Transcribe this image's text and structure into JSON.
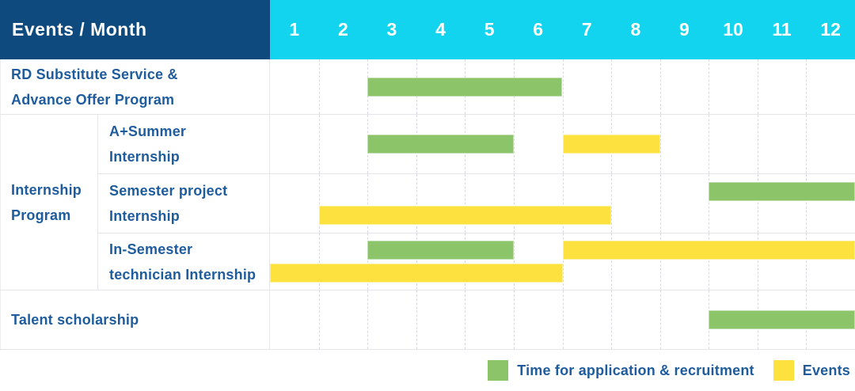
{
  "colors": {
    "header_bg": "#0f4a7e",
    "month_header_bg": "#12d4ee",
    "label_text": "#1e5c9e",
    "grid_line": "#d9d9e0",
    "row_border": "#e4e4e9"
  },
  "header": {
    "corner_label": "Events / Month"
  },
  "chart_data": {
    "type": "gantt",
    "x_axis": {
      "label": "Month",
      "ticks": [
        "1",
        "2",
        "3",
        "4",
        "5",
        "6",
        "7",
        "8",
        "9",
        "10",
        "11",
        "12"
      ],
      "range": [
        1,
        12
      ],
      "grid": "dashed-vertical"
    },
    "legend": [
      {
        "name": "Time for application & recruitment",
        "color": "#8cc46a"
      },
      {
        "name": "Events",
        "color": "#fde23f"
      }
    ],
    "legend_position": "bottom-right",
    "group_label": "Internship Program",
    "group_label_lines": [
      "Internship",
      "Program"
    ],
    "rows": [
      {
        "group": "",
        "label": "RD Substitute Service & Advance Offer Program",
        "label_lines": [
          "RD Substitute Service &",
          "Advance Offer Program"
        ],
        "bars": [
          {
            "series": "Time for application & recruitment",
            "start_month": 3,
            "end_month": 6,
            "line": "center"
          }
        ]
      },
      {
        "group": "Internship Program",
        "label": "A+Summer Internship",
        "label_lines": [
          "A+Summer",
          "Internship"
        ],
        "bars": [
          {
            "series": "Time for application & recruitment",
            "start_month": 3,
            "end_month": 5,
            "line": "center"
          },
          {
            "series": "Events",
            "start_month": 7,
            "end_month": 8,
            "line": "center"
          }
        ]
      },
      {
        "group": "Internship Program",
        "label": "Semester project Internship",
        "label_lines": [
          "Semester project",
          "Internship"
        ],
        "bars": [
          {
            "series": "Time for application & recruitment",
            "start_month": 10,
            "end_month": 12,
            "line": "upper"
          },
          {
            "series": "Events",
            "start_month": 2,
            "end_month": 7,
            "line": "lower"
          }
        ]
      },
      {
        "group": "Internship Program",
        "label": "In-Semester technician Internship",
        "label_lines": [
          "In-Semester",
          "technician Internship"
        ],
        "bars": [
          {
            "series": "Time for application & recruitment",
            "start_month": 3,
            "end_month": 5,
            "line": "upper"
          },
          {
            "series": "Events",
            "start_month": 7,
            "end_month": 12,
            "line": "upper"
          },
          {
            "series": "Events",
            "start_month": 1,
            "end_month": 6,
            "line": "lower"
          }
        ]
      },
      {
        "group": "",
        "label": "Talent scholarship",
        "label_lines": [
          "Talent scholarship"
        ],
        "bars": [
          {
            "series": "Time for application & recruitment",
            "start_month": 10,
            "end_month": 12,
            "line": "center"
          }
        ]
      }
    ]
  }
}
